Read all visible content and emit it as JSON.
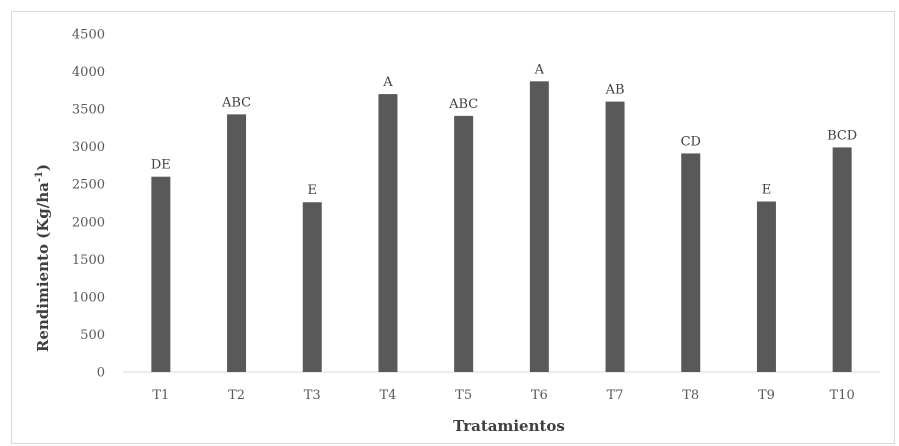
{
  "chart_data": {
    "type": "bar",
    "categories": [
      "T1",
      "T2",
      "T3",
      "T4",
      "T5",
      "T6",
      "T7",
      "T8",
      "T9",
      "T10"
    ],
    "values": [
      2600,
      3430,
      2260,
      3700,
      3410,
      3870,
      3600,
      2910,
      2270,
      2990
    ],
    "data_labels": [
      "DE",
      "ABC",
      "E",
      "A",
      "ABC",
      "A",
      "AB",
      "CD",
      "E",
      "BCD"
    ],
    "xlabel": "Tratamientos",
    "ylabel": "Rendimiento (Kg/ha",
    "ylabel_superscript": "-1",
    "ylabel_suffix": ")",
    "ylim": [
      0,
      4500
    ],
    "yticks": [
      0,
      500,
      1000,
      1500,
      2000,
      2500,
      3000,
      3500,
      4000,
      4500
    ],
    "grid": false,
    "legend": "none",
    "bar_color": "#595959",
    "axis_color": "#d9d9d9"
  }
}
